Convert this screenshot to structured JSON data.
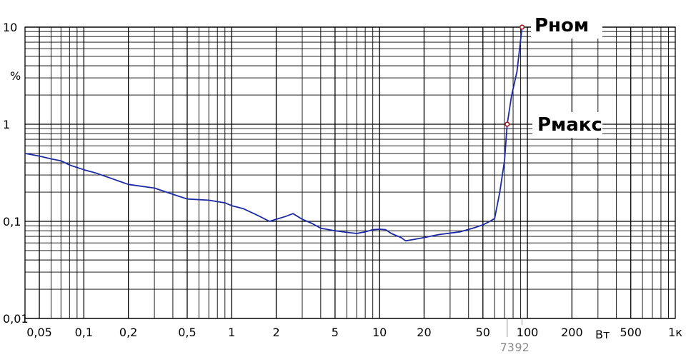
{
  "chart_data": {
    "type": "line",
    "x_scale": "log",
    "y_scale": "log",
    "xlim": [
      0.04,
      1000
    ],
    "ylim": [
      0.01,
      10
    ],
    "grid": true,
    "ylabel": "%",
    "xlabel": "Вт",
    "x_ticks": [
      {
        "value": 0.05,
        "label": "0,05"
      },
      {
        "value": 0.1,
        "label": "0,1"
      },
      {
        "value": 0.2,
        "label": "0,2"
      },
      {
        "value": 0.5,
        "label": "0,5"
      },
      {
        "value": 1,
        "label": "1"
      },
      {
        "value": 2,
        "label": "2"
      },
      {
        "value": 5,
        "label": "5"
      },
      {
        "value": 10,
        "label": "10"
      },
      {
        "value": 20,
        "label": "20"
      },
      {
        "value": 50,
        "label": "50"
      },
      {
        "value": 100,
        "label": "100"
      },
      {
        "value": 200,
        "label": "200"
      },
      {
        "value": 500,
        "label": "500"
      },
      {
        "value": 1000,
        "label": "1к"
      }
    ],
    "y_ticks": [
      {
        "value": 10,
        "label": "10"
      },
      {
        "value": 1,
        "label": "1"
      },
      {
        "value": 0.1,
        "label": "0,1"
      },
      {
        "value": 0.01,
        "label": "0,01"
      }
    ],
    "marker_ticks": [
      {
        "value": 73,
        "label": "73"
      },
      {
        "value": 92,
        "label": "92"
      }
    ],
    "series": [
      {
        "color": "#1c2aa6",
        "x": [
          0.04,
          0.05,
          0.06,
          0.07,
          0.08,
          0.1,
          0.12,
          0.15,
          0.2,
          0.3,
          0.4,
          0.5,
          0.7,
          0.9,
          1.0,
          1.2,
          1.5,
          1.8,
          2.0,
          2.3,
          2.6,
          3.0,
          3.5,
          4.0,
          5.0,
          6.0,
          7.0,
          8.0,
          9.0,
          10,
          11,
          12,
          14,
          15,
          17,
          20,
          25,
          35,
          45,
          50,
          55,
          60,
          65,
          70,
          73,
          78,
          85,
          92
        ],
        "y": [
          0.5,
          0.47,
          0.44,
          0.42,
          0.38,
          0.34,
          0.315,
          0.28,
          0.24,
          0.22,
          0.19,
          0.17,
          0.165,
          0.155,
          0.145,
          0.135,
          0.115,
          0.1,
          0.105,
          0.112,
          0.12,
          0.105,
          0.095,
          0.085,
          0.08,
          0.077,
          0.075,
          0.078,
          0.082,
          0.083,
          0.082,
          0.075,
          0.068,
          0.063,
          0.065,
          0.068,
          0.073,
          0.078,
          0.087,
          0.092,
          0.099,
          0.107,
          0.2,
          0.42,
          1.0,
          1.95,
          3.5,
          10.0
        ]
      }
    ],
    "points": [
      {
        "x": 73,
        "y": 1,
        "label": "Pном"
      },
      {
        "x": 92,
        "y": 10,
        "label": "Pмакс"
      }
    ]
  }
}
